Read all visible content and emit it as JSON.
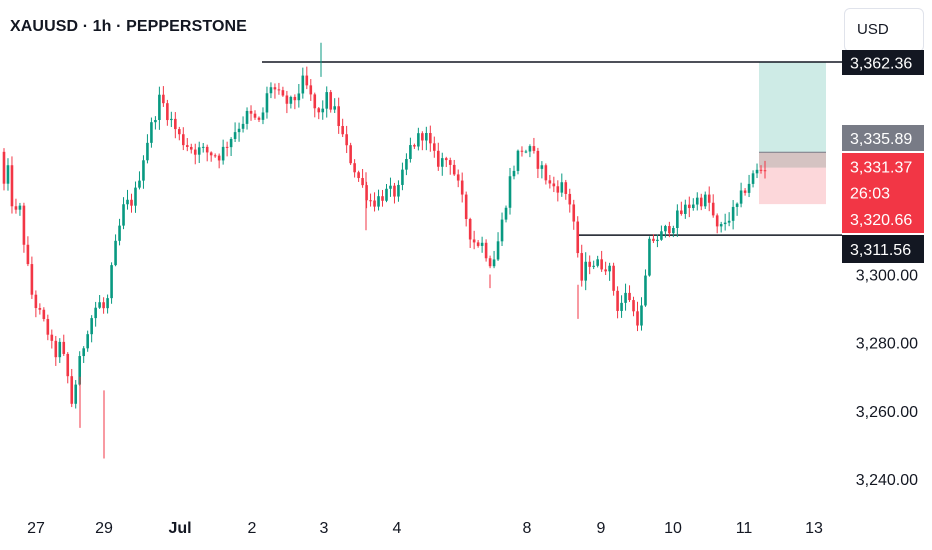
{
  "header": {
    "title": "XAUUSD · 1h · PEPPERSTONE",
    "currency_label": "USD"
  },
  "chart_data": {
    "type": "candlestick",
    "symbol": "XAUUSD",
    "interval": "1h",
    "source": "PEPPERSTONE",
    "ylim": [
      3228,
      3372
    ],
    "y_ticks": [
      "3,300.00",
      "3,280.00",
      "3,260.00",
      "3,240.00"
    ],
    "y_tick_values": [
      3300,
      3280,
      3260,
      3240
    ],
    "x_ticks": [
      {
        "label": "27",
        "bold": false
      },
      {
        "label": "29",
        "bold": false
      },
      {
        "label": "Jul",
        "bold": true
      },
      {
        "label": "2",
        "bold": false
      },
      {
        "label": "3",
        "bold": false
      },
      {
        "label": "4",
        "bold": false
      },
      {
        "label": "8",
        "bold": false
      },
      {
        "label": "9",
        "bold": false
      },
      {
        "label": "10",
        "bold": false
      },
      {
        "label": "11",
        "bold": false
      },
      {
        "label": "13",
        "bold": false
      }
    ],
    "colors": {
      "up": "#089981",
      "down": "#f23645",
      "line": "#131722"
    },
    "price_tags": [
      {
        "label": "3,362.36",
        "value": 3362.36,
        "bg": "#131722"
      },
      {
        "label": "3,335.89",
        "value": 3335.89,
        "bg": "#787b86"
      },
      {
        "label": "3,331.37",
        "value": 3331.37,
        "bg": "#f23645"
      },
      {
        "label": "26:03",
        "value": 3326.6,
        "bg": "#f23645"
      },
      {
        "label": "3,320.66",
        "value": 3320.66,
        "bg": "#f23645"
      },
      {
        "label": "3,311.56",
        "value": 3311.56,
        "bg": "#131722"
      }
    ],
    "horizontal_lines": [
      3362.36,
      3311.56
    ],
    "position": {
      "type": "long",
      "entry": 3331.37,
      "target": 3362.36,
      "stop": 3320.66,
      "current": 3335.89
    },
    "keypoints": [
      {
        "i": 0,
        "p": 3336
      },
      {
        "i": 4,
        "p": 3326
      },
      {
        "i": 8,
        "p": 3330
      },
      {
        "i": 14,
        "p": 3317
      },
      {
        "i": 20,
        "p": 3319
      },
      {
        "i": 26,
        "p": 3305
      },
      {
        "i": 32,
        "p": 3294
      },
      {
        "i": 40,
        "p": 3288
      },
      {
        "i": 48,
        "p": 3283
      },
      {
        "i": 54,
        "p": 3276
      },
      {
        "i": 60,
        "p": 3279
      },
      {
        "i": 66,
        "p": 3273
      },
      {
        "i": 72,
        "p": 3262
      },
      {
        "i": 78,
        "p": 3272
      },
      {
        "i": 88,
        "p": 3285
      },
      {
        "i": 98,
        "p": 3292
      },
      {
        "i": 106,
        "p": 3289
      },
      {
        "i": 114,
        "p": 3306
      },
      {
        "i": 124,
        "p": 3320
      },
      {
        "i": 134,
        "p": 3322
      },
      {
        "i": 146,
        "p": 3338
      },
      {
        "i": 160,
        "p": 3352
      },
      {
        "i": 168,
        "p": 3347
      },
      {
        "i": 180,
        "p": 3340
      },
      {
        "i": 192,
        "p": 3337
      },
      {
        "i": 206,
        "p": 3336
      },
      {
        "i": 220,
        "p": 3335
      },
      {
        "i": 234,
        "p": 3342
      },
      {
        "i": 248,
        "p": 3347
      },
      {
        "i": 260,
        "p": 3344
      },
      {
        "i": 270,
        "p": 3356
      },
      {
        "i": 282,
        "p": 3351
      },
      {
        "i": 292,
        "p": 3350
      },
      {
        "i": 304,
        "p": 3357
      },
      {
        "i": 318,
        "p": 3346
      },
      {
        "i": 326,
        "p": 3352
      },
      {
        "i": 336,
        "p": 3347
      },
      {
        "i": 346,
        "p": 3337
      },
      {
        "i": 362,
        "p": 3326
      },
      {
        "i": 372,
        "p": 3321
      },
      {
        "i": 386,
        "p": 3324
      },
      {
        "i": 398,
        "p": 3324
      },
      {
        "i": 410,
        "p": 3337
      },
      {
        "i": 424,
        "p": 3342
      },
      {
        "i": 436,
        "p": 3333
      },
      {
        "i": 450,
        "p": 3334
      },
      {
        "i": 460,
        "p": 3324
      },
      {
        "i": 472,
        "p": 3310
      },
      {
        "i": 482,
        "p": 3309
      },
      {
        "i": 492,
        "p": 3303
      },
      {
        "i": 500,
        "p": 3312
      },
      {
        "i": 510,
        "p": 3328
      },
      {
        "i": 520,
        "p": 3337
      },
      {
        "i": 530,
        "p": 3336
      },
      {
        "i": 540,
        "p": 3332
      },
      {
        "i": 550,
        "p": 3326
      },
      {
        "i": 562,
        "p": 3326
      },
      {
        "i": 572,
        "p": 3320
      },
      {
        "i": 576,
        "p": 3310
      },
      {
        "i": 580,
        "p": 3297
      },
      {
        "i": 588,
        "p": 3304
      },
      {
        "i": 598,
        "p": 3303
      },
      {
        "i": 608,
        "p": 3303
      },
      {
        "i": 618,
        "p": 3290
      },
      {
        "i": 628,
        "p": 3295
      },
      {
        "i": 636,
        "p": 3286
      },
      {
        "i": 642,
        "p": 3290
      },
      {
        "i": 650,
        "p": 3310
      },
      {
        "i": 660,
        "p": 3311
      },
      {
        "i": 672,
        "p": 3315
      },
      {
        "i": 684,
        "p": 3319
      },
      {
        "i": 696,
        "p": 3322
      },
      {
        "i": 708,
        "p": 3322
      },
      {
        "i": 718,
        "p": 3312
      },
      {
        "i": 726,
        "p": 3316
      },
      {
        "i": 736,
        "p": 3319
      },
      {
        "i": 746,
        "p": 3326
      },
      {
        "i": 756,
        "p": 3330
      },
      {
        "i": 764,
        "p": 3331.37
      }
    ]
  }
}
